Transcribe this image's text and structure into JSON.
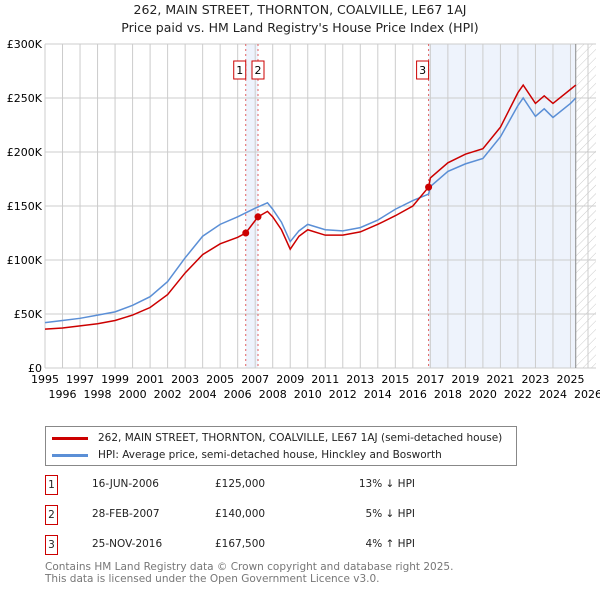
{
  "chart_data": {
    "type": "line",
    "title": "262, MAIN STREET, THORNTON, COALVILLE, LE67 1AJ",
    "subtitle": "Price paid vs. HM Land Registry's House Price Index (HPI)",
    "xlim": [
      1995,
      2026
    ],
    "ylim": [
      0,
      300000
    ],
    "y_ticks": [
      {
        "v": 0,
        "label": "£0"
      },
      {
        "v": 50000,
        "label": "£50K"
      },
      {
        "v": 100000,
        "label": "£100K"
      },
      {
        "v": 150000,
        "label": "£150K"
      },
      {
        "v": 200000,
        "label": "£200K"
      },
      {
        "v": 250000,
        "label": "£250K"
      },
      {
        "v": 300000,
        "label": "£300K"
      }
    ],
    "x_ticks": [
      1995,
      1996,
      1997,
      1998,
      1999,
      2000,
      2001,
      2002,
      2003,
      2004,
      2005,
      2006,
      2007,
      2008,
      2009,
      2010,
      2011,
      2012,
      2013,
      2014,
      2015,
      2016,
      2017,
      2018,
      2019,
      2020,
      2021,
      2022,
      2023,
      2024,
      2025,
      2026
    ],
    "series": [
      {
        "name": "262, MAIN STREET, THORNTON, COALVILLE, LE67 1AJ (semi-detached house)",
        "color": "#cc0000",
        "x": [
          1995,
          1996,
          1997,
          1998,
          1999,
          2000,
          2001,
          2002,
          2003,
          2004,
          2005,
          2006,
          2006.46,
          2007.16,
          2007.7,
          2008,
          2008.5,
          2009,
          2009.5,
          2010,
          2011,
          2012,
          2013,
          2014,
          2015,
          2016,
          2016.9,
          2017,
          2018,
          2019,
          2020,
          2021,
          2022,
          2022.3,
          2023,
          2023.5,
          2024,
          2025,
          2025.3
        ],
        "y": [
          36000,
          37000,
          39000,
          41000,
          44000,
          49000,
          56000,
          68000,
          88000,
          105000,
          115000,
          121000,
          125000,
          140000,
          145000,
          140000,
          128000,
          110000,
          122000,
          128000,
          123000,
          123000,
          126000,
          133000,
          141000,
          150000,
          167500,
          176000,
          190000,
          198000,
          203000,
          223000,
          255000,
          262000,
          245000,
          252000,
          245000,
          258000,
          262000
        ]
      },
      {
        "name": "HPI: Average price, semi-detached house, Hinckley and Bosworth",
        "color": "#5b8fd6",
        "x": [
          1995,
          1996,
          1997,
          1998,
          1999,
          2000,
          2001,
          2002,
          2003,
          2004,
          2005,
          2006,
          2007,
          2007.7,
          2008,
          2008.5,
          2009,
          2009.5,
          2010,
          2011,
          2012,
          2013,
          2014,
          2015,
          2016,
          2016.9,
          2017,
          2018,
          2019,
          2020,
          2021,
          2022,
          2022.3,
          2023,
          2023.5,
          2024,
          2025,
          2025.3
        ],
        "y": [
          42000,
          44000,
          46000,
          49000,
          52000,
          58000,
          66000,
          80000,
          102000,
          122000,
          133000,
          140000,
          148000,
          153000,
          147000,
          135000,
          117000,
          127000,
          133000,
          128000,
          127000,
          130000,
          137000,
          147000,
          155000,
          161000,
          168000,
          182000,
          189000,
          194000,
          214000,
          243000,
          250000,
          233000,
          240000,
          232000,
          245000,
          250000
        ]
      }
    ],
    "sales": [
      {
        "id": "1",
        "date": "16-JUN-2006",
        "price": "£125,000",
        "hpi": "13% ↓ HPI",
        "x": 2006.46,
        "y": 125000
      },
      {
        "id": "2",
        "date": "28-FEB-2007",
        "price": "£140,000",
        "hpi": "5% ↓ HPI",
        "x": 2007.16,
        "y": 140000
      },
      {
        "id": "3",
        "date": "25-NOV-2016",
        "price": "£167,500",
        "hpi": "4% ↑ HPI",
        "x": 2016.9,
        "y": 167500
      }
    ],
    "shaded": [
      [
        2006.46,
        2007.16
      ],
      [
        2016.9,
        2025.3
      ]
    ],
    "hatched_from": 2025.3
  },
  "footer": [
    "Contains HM Land Registry data © Crown copyright and database right 2025.",
    "This data is licensed under the Open Government Licence v3.0."
  ]
}
